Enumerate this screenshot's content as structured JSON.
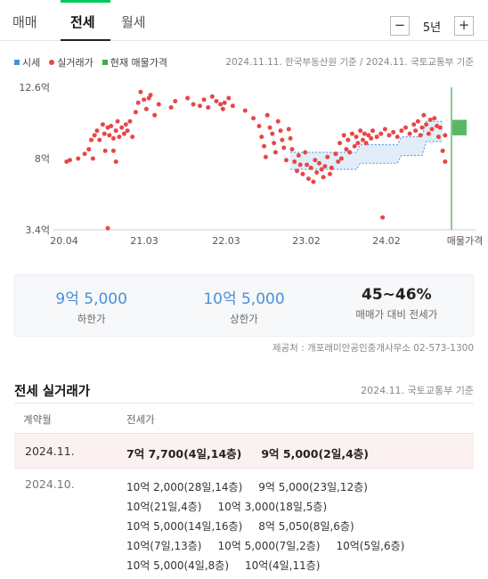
{
  "tabs": [
    {
      "label": "매매",
      "active": false
    },
    {
      "label": "전세",
      "active": true
    },
    {
      "label": "월세",
      "active": false
    }
  ],
  "period": {
    "minus": "−",
    "value": "5년",
    "plus": "+"
  },
  "legend": {
    "jeonse": "시세",
    "deals": "실거래가",
    "current": "현재 매물가격"
  },
  "source_note": "2024.11.11. 한국부동산원 기준 / 2024.11. 국토교통부 기준",
  "colors": {
    "band": "#4a90d9",
    "deal": "#e84646",
    "current": "#3cab4a"
  },
  "chart_data": {
    "type": "scatter",
    "yticks": [
      "12.6억",
      "8억",
      "3.4억"
    ],
    "ylim": [
      3.4,
      12.6
    ],
    "xticks": [
      "20.04",
      "21.03",
      "22.03",
      "23.02",
      "24.02",
      "매물가격"
    ],
    "x_range": [
      "2020-04",
      "2024-11"
    ],
    "y_unit": "억",
    "current_range": [
      9.5,
      10.5
    ],
    "band_top": [
      [
        2023.0,
        8.4
      ],
      [
        2023.8,
        8.4
      ],
      [
        2023.85,
        8.9
      ],
      [
        2024.3,
        8.9
      ],
      [
        2024.35,
        9.4
      ],
      [
        2024.6,
        9.4
      ],
      [
        2024.65,
        10.4
      ],
      [
        2024.85,
        10.4
      ]
    ],
    "band_bottom": [
      [
        2023.0,
        7.3
      ],
      [
        2023.8,
        7.3
      ],
      [
        2023.85,
        7.7
      ],
      [
        2024.3,
        7.7
      ],
      [
        2024.35,
        8.2
      ],
      [
        2024.6,
        8.2
      ],
      [
        2024.65,
        9.1
      ],
      [
        2024.85,
        9.1
      ]
    ],
    "deals": [
      [
        2020.28,
        7.8
      ],
      [
        2020.32,
        7.9
      ],
      [
        2020.42,
        8.0
      ],
      [
        2020.5,
        8.3
      ],
      [
        2020.55,
        8.6
      ],
      [
        2020.58,
        9.2
      ],
      [
        2020.6,
        8.0
      ],
      [
        2020.62,
        9.5
      ],
      [
        2020.65,
        9.8
      ],
      [
        2020.68,
        9.2
      ],
      [
        2020.72,
        10.2
      ],
      [
        2020.74,
        9.6
      ],
      [
        2020.75,
        8.5
      ],
      [
        2020.78,
        10.0
      ],
      [
        2020.8,
        9.5
      ],
      [
        2020.82,
        10.1
      ],
      [
        2020.85,
        9.3
      ],
      [
        2020.88,
        9.8
      ],
      [
        2020.9,
        10.4
      ],
      [
        2020.92,
        9.4
      ],
      [
        2020.95,
        10.0
      ],
      [
        2020.98,
        9.6
      ],
      [
        2021.0,
        10.2
      ],
      [
        2021.02,
        9.8
      ],
      [
        2021.05,
        10.4
      ],
      [
        2021.08,
        9.4
      ],
      [
        2020.85,
        8.5
      ],
      [
        2020.88,
        7.8
      ],
      [
        2020.78,
        3.5
      ],
      [
        2021.12,
        11.0
      ],
      [
        2021.15,
        11.6
      ],
      [
        2021.18,
        12.3
      ],
      [
        2021.22,
        11.8
      ],
      [
        2021.25,
        11.2
      ],
      [
        2021.28,
        11.9
      ],
      [
        2021.3,
        12.1
      ],
      [
        2021.35,
        10.8
      ],
      [
        2021.4,
        11.5
      ],
      [
        2021.55,
        11.3
      ],
      [
        2021.6,
        11.7
      ],
      [
        2021.75,
        11.9
      ],
      [
        2021.82,
        11.5
      ],
      [
        2021.9,
        11.4
      ],
      [
        2021.95,
        11.8
      ],
      [
        2022.0,
        11.3
      ],
      [
        2022.05,
        12.0
      ],
      [
        2022.1,
        11.7
      ],
      [
        2022.15,
        11.5
      ],
      [
        2022.18,
        11.2
      ],
      [
        2022.2,
        11.6
      ],
      [
        2022.25,
        11.9
      ],
      [
        2022.3,
        11.4
      ],
      [
        2022.45,
        11.1
      ],
      [
        2022.55,
        10.6
      ],
      [
        2022.62,
        10.1
      ],
      [
        2022.65,
        9.4
      ],
      [
        2022.68,
        8.8
      ],
      [
        2022.7,
        8.1
      ],
      [
        2022.72,
        10.8
      ],
      [
        2022.75,
        10.0
      ],
      [
        2022.78,
        9.6
      ],
      [
        2022.8,
        9.0
      ],
      [
        2022.82,
        8.4
      ],
      [
        2022.85,
        10.4
      ],
      [
        2022.88,
        9.8
      ],
      [
        2022.9,
        9.2
      ],
      [
        2022.92,
        8.7
      ],
      [
        2022.95,
        7.9
      ],
      [
        2022.98,
        9.9
      ],
      [
        2023.0,
        9.3
      ],
      [
        2023.02,
        8.6
      ],
      [
        2023.05,
        7.8
      ],
      [
        2023.08,
        7.2
      ],
      [
        2023.1,
        8.2
      ],
      [
        2023.12,
        7.6
      ],
      [
        2023.15,
        7.0
      ],
      [
        2023.18,
        8.4
      ],
      [
        2023.2,
        7.6
      ],
      [
        2023.22,
        6.7
      ],
      [
        2023.25,
        7.4
      ],
      [
        2023.28,
        6.5
      ],
      [
        2023.3,
        7.9
      ],
      [
        2023.32,
        7.1
      ],
      [
        2023.35,
        7.7
      ],
      [
        2023.38,
        7.3
      ],
      [
        2023.4,
        6.8
      ],
      [
        2023.42,
        7.5
      ],
      [
        2023.45,
        8.1
      ],
      [
        2023.48,
        7.0
      ],
      [
        2023.5,
        7.4
      ],
      [
        2023.55,
        8.3
      ],
      [
        2023.58,
        7.8
      ],
      [
        2023.6,
        9.0
      ],
      [
        2023.62,
        8.0
      ],
      [
        2023.65,
        9.5
      ],
      [
        2023.68,
        8.6
      ],
      [
        2023.7,
        9.2
      ],
      [
        2023.72,
        8.4
      ],
      [
        2023.75,
        9.6
      ],
      [
        2023.78,
        8.8
      ],
      [
        2023.8,
        9.4
      ],
      [
        2023.82,
        9.0
      ],
      [
        2023.85,
        9.8
      ],
      [
        2023.88,
        9.2
      ],
      [
        2023.9,
        9.6
      ],
      [
        2023.92,
        9.0
      ],
      [
        2023.95,
        9.5
      ],
      [
        2023.98,
        9.3
      ],
      [
        2024.0,
        9.8
      ],
      [
        2024.05,
        9.4
      ],
      [
        2024.1,
        9.6
      ],
      [
        2024.12,
        4.2
      ],
      [
        2024.15,
        9.9
      ],
      [
        2024.2,
        9.5
      ],
      [
        2024.25,
        9.7
      ],
      [
        2024.3,
        9.4
      ],
      [
        2024.35,
        9.8
      ],
      [
        2024.4,
        10.0
      ],
      [
        2024.45,
        9.6
      ],
      [
        2024.5,
        10.2
      ],
      [
        2024.52,
        9.8
      ],
      [
        2024.55,
        10.4
      ],
      [
        2024.58,
        9.5
      ],
      [
        2024.6,
        10.0
      ],
      [
        2024.62,
        10.8
      ],
      [
        2024.65,
        10.2
      ],
      [
        2024.68,
        9.6
      ],
      [
        2024.7,
        10.5
      ],
      [
        2024.72,
        9.9
      ],
      [
        2024.75,
        10.6
      ],
      [
        2024.78,
        10.1
      ],
      [
        2024.8,
        9.4
      ],
      [
        2024.82,
        10.0
      ],
      [
        2024.85,
        8.5
      ],
      [
        2024.88,
        7.8
      ],
      [
        2024.88,
        9.5
      ]
    ]
  },
  "summary": [
    {
      "value": "9억 5,000",
      "label": "하한가",
      "style": "blue"
    },
    {
      "value": "10억 5,000",
      "label": "상한가",
      "style": "blue"
    },
    {
      "value": "45~46%",
      "label": "매매가 대비 전세가",
      "style": "dark"
    }
  ],
  "provider": "제공처 : 개포래미안공인중개사무소 02-573-1300",
  "deals_section": {
    "title": "전세 실거래가",
    "source": "2024.11. 국토교통부 기준",
    "col_date": "계약월",
    "col_price": "전세가",
    "rows": [
      {
        "date": "2024.11.",
        "deals": [
          "7억 7,700(4일,14층)",
          "9억 5,000(2일,4층)"
        ]
      },
      {
        "date": "2024.10.",
        "deals": [
          "10억 2,000(28일,14층)",
          "9억 5,000(23일,12층)",
          "10억(21일,4층)",
          "10억 3,000(18일,5층)",
          "10억 5,000(14일,16층)",
          "8억 5,050(8일,6층)",
          "10억(7일,13층)",
          "10억 5,000(7일,2층)",
          "10억(5일,6층)",
          "10억 5,000(4일,8층)",
          "10억(4일,11층)"
        ]
      }
    ]
  }
}
